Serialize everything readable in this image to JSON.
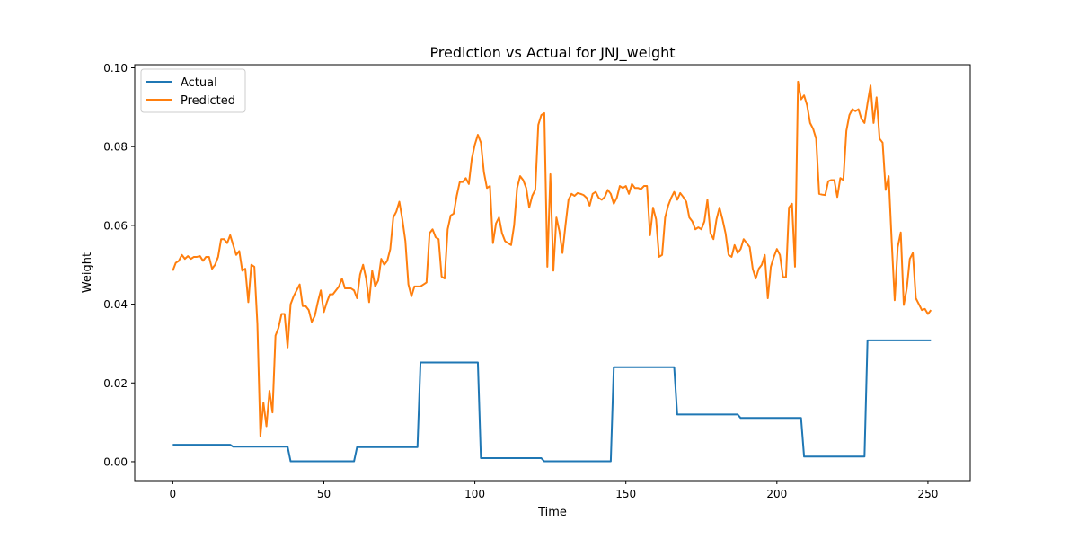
{
  "chart_data": {
    "type": "line",
    "title": "Prediction vs Actual for JNJ_weight",
    "xlabel": "Time",
    "ylabel": "Weight",
    "xlim": [
      -12.6,
      264
    ],
    "ylim": [
      -0.0048,
      0.1008
    ],
    "xticks": [
      0,
      50,
      100,
      150,
      200,
      250
    ],
    "yticks": [
      0.0,
      0.02,
      0.04,
      0.06,
      0.08,
      0.1
    ],
    "ytick_labels": [
      "0.00",
      "0.02",
      "0.04",
      "0.06",
      "0.08",
      "0.10"
    ],
    "grid": false,
    "legend_position": "top-left",
    "series": [
      {
        "name": "Actual",
        "color": "#1f77b4",
        "points": [
          [
            0,
            0.0043
          ],
          [
            19,
            0.0043
          ],
          [
            20,
            0.0038
          ],
          [
            38,
            0.0038
          ],
          [
            39,
            0.0001
          ],
          [
            60,
            0.0001
          ],
          [
            61,
            0.0037
          ],
          [
            81,
            0.0037
          ],
          [
            82,
            0.0252
          ],
          [
            101,
            0.0252
          ],
          [
            102,
            0.0009
          ],
          [
            122,
            0.0009
          ],
          [
            123,
            0.0001
          ],
          [
            145,
            0.0001
          ],
          [
            146,
            0.024
          ],
          [
            166,
            0.024
          ],
          [
            167,
            0.012
          ],
          [
            187,
            0.012
          ],
          [
            188,
            0.0111
          ],
          [
            208,
            0.0111
          ],
          [
            209,
            0.0013
          ],
          [
            229,
            0.0013
          ],
          [
            230,
            0.0308
          ],
          [
            251,
            0.0308
          ]
        ]
      },
      {
        "name": "Predicted",
        "color": "#ff7f0e",
        "points": [
          [
            0,
            0.0485
          ],
          [
            1,
            0.0505
          ],
          [
            2,
            0.051
          ],
          [
            3,
            0.0525
          ],
          [
            4,
            0.0515
          ],
          [
            5,
            0.0522
          ],
          [
            6,
            0.0515
          ],
          [
            7,
            0.052
          ],
          [
            8,
            0.052
          ],
          [
            9,
            0.0522
          ],
          [
            10,
            0.051
          ],
          [
            11,
            0.052
          ],
          [
            12,
            0.052
          ],
          [
            13,
            0.049
          ],
          [
            14,
            0.05
          ],
          [
            15,
            0.052
          ],
          [
            16,
            0.0565
          ],
          [
            17,
            0.0565
          ],
          [
            18,
            0.0555
          ],
          [
            19,
            0.0575
          ],
          [
            20,
            0.055
          ],
          [
            21,
            0.0525
          ],
          [
            22,
            0.0535
          ],
          [
            23,
            0.0485
          ],
          [
            24,
            0.049
          ],
          [
            25,
            0.0405
          ],
          [
            26,
            0.05
          ],
          [
            27,
            0.0495
          ],
          [
            28,
            0.035
          ],
          [
            29,
            0.0065
          ],
          [
            30,
            0.015
          ],
          [
            31,
            0.009
          ],
          [
            32,
            0.018
          ],
          [
            33,
            0.0125
          ],
          [
            34,
            0.032
          ],
          [
            35,
            0.034
          ],
          [
            36,
            0.0375
          ],
          [
            37,
            0.0375
          ],
          [
            38,
            0.029
          ],
          [
            39,
            0.04
          ],
          [
            40,
            0.042
          ],
          [
            41,
            0.0435
          ],
          [
            42,
            0.045
          ],
          [
            43,
            0.0395
          ],
          [
            44,
            0.0395
          ],
          [
            45,
            0.0385
          ],
          [
            46,
            0.0355
          ],
          [
            47,
            0.037
          ],
          [
            48,
            0.0405
          ],
          [
            49,
            0.0435
          ],
          [
            50,
            0.038
          ],
          [
            51,
            0.0405
          ],
          [
            52,
            0.0425
          ],
          [
            53,
            0.0425
          ],
          [
            54,
            0.0435
          ],
          [
            55,
            0.0445
          ],
          [
            56,
            0.0465
          ],
          [
            57,
            0.044
          ],
          [
            58,
            0.044
          ],
          [
            59,
            0.044
          ],
          [
            60,
            0.0435
          ],
          [
            61,
            0.0415
          ],
          [
            62,
            0.0475
          ],
          [
            63,
            0.05
          ],
          [
            64,
            0.0465
          ],
          [
            65,
            0.0405
          ],
          [
            66,
            0.0485
          ],
          [
            67,
            0.0445
          ],
          [
            68,
            0.046
          ],
          [
            69,
            0.0515
          ],
          [
            70,
            0.05
          ],
          [
            71,
            0.051
          ],
          [
            72,
            0.054
          ],
          [
            73,
            0.062
          ],
          [
            74,
            0.0635
          ],
          [
            75,
            0.066
          ],
          [
            76,
            0.0615
          ],
          [
            77,
            0.056
          ],
          [
            78,
            0.045
          ],
          [
            79,
            0.042
          ],
          [
            80,
            0.0445
          ],
          [
            81,
            0.0445
          ],
          [
            82,
            0.0445
          ],
          [
            83,
            0.045
          ],
          [
            84,
            0.0455
          ],
          [
            85,
            0.058
          ],
          [
            86,
            0.059
          ],
          [
            87,
            0.057
          ],
          [
            88,
            0.0565
          ],
          [
            89,
            0.047
          ],
          [
            90,
            0.0465
          ],
          [
            91,
            0.059
          ],
          [
            92,
            0.0625
          ],
          [
            93,
            0.063
          ],
          [
            94,
            0.0675
          ],
          [
            95,
            0.071
          ],
          [
            96,
            0.071
          ],
          [
            97,
            0.072
          ],
          [
            98,
            0.0705
          ],
          [
            99,
            0.077
          ],
          [
            100,
            0.0805
          ],
          [
            101,
            0.083
          ],
          [
            102,
            0.081
          ],
          [
            103,
            0.0735
          ],
          [
            104,
            0.0695
          ],
          [
            105,
            0.07
          ],
          [
            106,
            0.0555
          ],
          [
            107,
            0.0605
          ],
          [
            108,
            0.062
          ],
          [
            109,
            0.058
          ],
          [
            110,
            0.056
          ],
          [
            111,
            0.0555
          ],
          [
            112,
            0.055
          ],
          [
            113,
            0.06
          ],
          [
            114,
            0.0695
          ],
          [
            115,
            0.0725
          ],
          [
            116,
            0.0715
          ],
          [
            117,
            0.0695
          ],
          [
            118,
            0.0645
          ],
          [
            119,
            0.0675
          ],
          [
            120,
            0.069
          ],
          [
            121,
            0.0855
          ],
          [
            122,
            0.088
          ],
          [
            123,
            0.0885
          ],
          [
            124,
            0.0495
          ],
          [
            125,
            0.073
          ],
          [
            126,
            0.0485
          ],
          [
            127,
            0.062
          ],
          [
            128,
            0.0585
          ],
          [
            129,
            0.053
          ],
          [
            130,
            0.06
          ],
          [
            131,
            0.0665
          ],
          [
            132,
            0.068
          ],
          [
            133,
            0.0675
          ],
          [
            134,
            0.0682
          ],
          [
            135,
            0.068
          ],
          [
            136,
            0.0677
          ],
          [
            137,
            0.067
          ],
          [
            138,
            0.065
          ],
          [
            139,
            0.068
          ],
          [
            140,
            0.0685
          ],
          [
            141,
            0.067
          ],
          [
            142,
            0.0665
          ],
          [
            143,
            0.0672
          ],
          [
            144,
            0.069
          ],
          [
            145,
            0.068
          ],
          [
            146,
            0.0655
          ],
          [
            147,
            0.067
          ],
          [
            148,
            0.07
          ],
          [
            149,
            0.0695
          ],
          [
            150,
            0.07
          ],
          [
            151,
            0.068
          ],
          [
            152,
            0.0705
          ],
          [
            153,
            0.0695
          ],
          [
            154,
            0.0695
          ],
          [
            155,
            0.0692
          ],
          [
            156,
            0.07
          ],
          [
            157,
            0.07
          ],
          [
            158,
            0.0575
          ],
          [
            159,
            0.0645
          ],
          [
            160,
            0.0615
          ],
          [
            161,
            0.052
          ],
          [
            162,
            0.0525
          ],
          [
            163,
            0.062
          ],
          [
            164,
            0.065
          ],
          [
            165,
            0.067
          ],
          [
            166,
            0.0685
          ],
          [
            167,
            0.0665
          ],
          [
            168,
            0.0682
          ],
          [
            169,
            0.0672
          ],
          [
            170,
            0.066
          ],
          [
            171,
            0.062
          ],
          [
            172,
            0.061
          ],
          [
            173,
            0.059
          ],
          [
            174,
            0.0595
          ],
          [
            175,
            0.059
          ],
          [
            176,
            0.061
          ],
          [
            177,
            0.0665
          ],
          [
            178,
            0.058
          ],
          [
            179,
            0.0565
          ],
          [
            180,
            0.0615
          ],
          [
            181,
            0.0645
          ],
          [
            182,
            0.0615
          ],
          [
            183,
            0.058
          ],
          [
            184,
            0.0525
          ],
          [
            185,
            0.052
          ],
          [
            186,
            0.055
          ],
          [
            187,
            0.053
          ],
          [
            188,
            0.054
          ],
          [
            189,
            0.0565
          ],
          [
            190,
            0.0555
          ],
          [
            191,
            0.0545
          ],
          [
            192,
            0.049
          ],
          [
            193,
            0.0465
          ],
          [
            194,
            0.049
          ],
          [
            195,
            0.05
          ],
          [
            196,
            0.0525
          ],
          [
            197,
            0.0415
          ],
          [
            198,
            0.0495
          ],
          [
            199,
            0.052
          ],
          [
            200,
            0.054
          ],
          [
            201,
            0.0525
          ],
          [
            202,
            0.047
          ],
          [
            203,
            0.0468
          ],
          [
            204,
            0.0645
          ],
          [
            205,
            0.0655
          ],
          [
            206,
            0.0495
          ],
          [
            207,
            0.0965
          ],
          [
            208,
            0.092
          ],
          [
            209,
            0.093
          ],
          [
            210,
            0.0905
          ],
          [
            211,
            0.086
          ],
          [
            212,
            0.0845
          ],
          [
            213,
            0.082
          ],
          [
            214,
            0.068
          ],
          [
            215,
            0.0678
          ],
          [
            216,
            0.0677
          ],
          [
            217,
            0.0712
          ],
          [
            218,
            0.0715
          ],
          [
            219,
            0.0715
          ],
          [
            220,
            0.0672
          ],
          [
            221,
            0.072
          ],
          [
            222,
            0.0715
          ],
          [
            223,
            0.084
          ],
          [
            224,
            0.088
          ],
          [
            225,
            0.0895
          ],
          [
            226,
            0.089
          ],
          [
            227,
            0.0895
          ],
          [
            228,
            0.087
          ],
          [
            229,
            0.086
          ],
          [
            230,
            0.091
          ],
          [
            231,
            0.0955
          ],
          [
            232,
            0.086
          ],
          [
            233,
            0.0925
          ],
          [
            234,
            0.082
          ],
          [
            235,
            0.081
          ],
          [
            236,
            0.069
          ],
          [
            237,
            0.0725
          ],
          [
            238,
            0.056
          ],
          [
            239,
            0.041
          ],
          [
            240,
            0.0545
          ],
          [
            241,
            0.0582
          ],
          [
            242,
            0.0398
          ],
          [
            243,
            0.044
          ],
          [
            244,
            0.0515
          ],
          [
            245,
            0.053
          ],
          [
            246,
            0.0415
          ],
          [
            247,
            0.04
          ],
          [
            248,
            0.0385
          ],
          [
            249,
            0.0388
          ],
          [
            250,
            0.0375
          ],
          [
            251,
            0.0385
          ]
        ]
      }
    ]
  }
}
